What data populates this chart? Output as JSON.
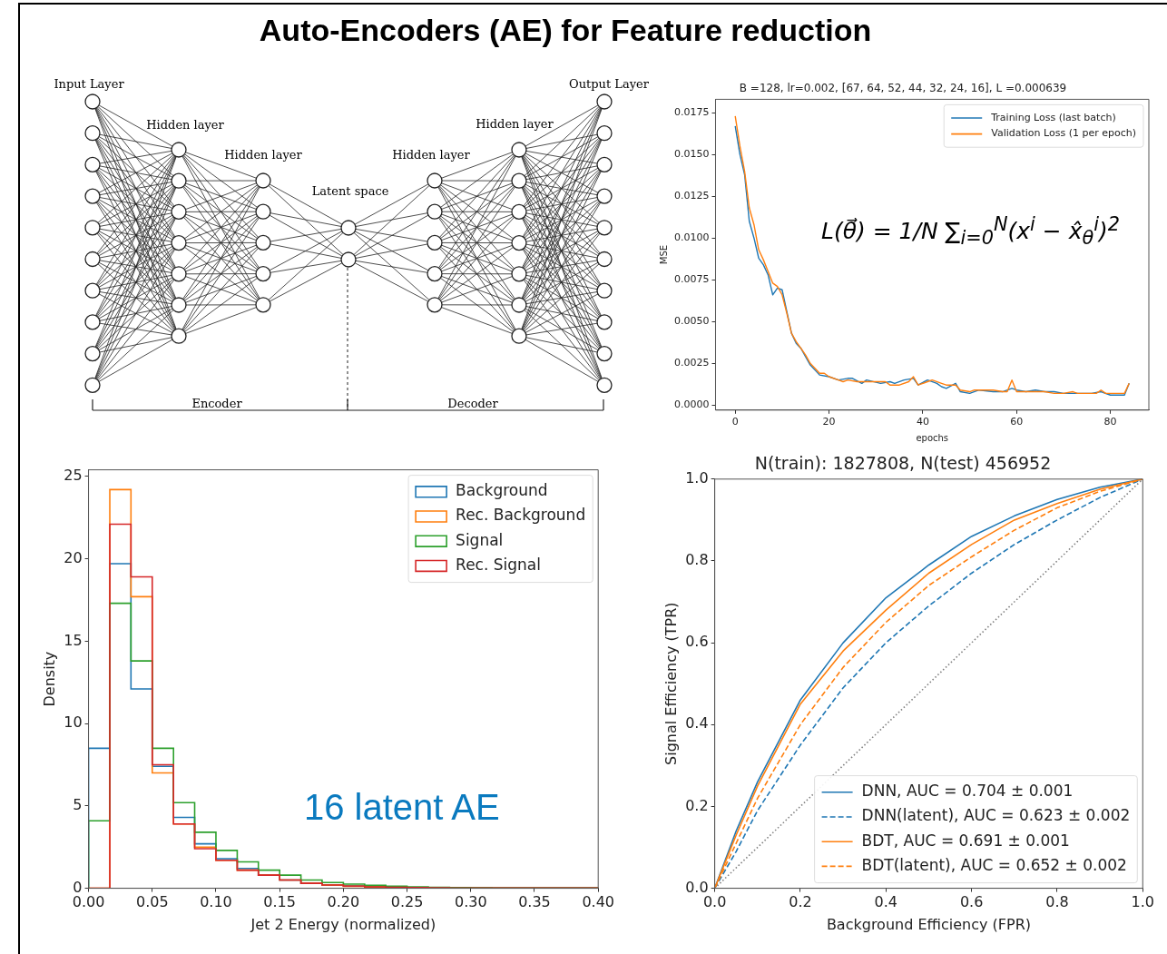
{
  "chart_data": [
    {
      "type": "other",
      "title": "Auto-Encoders (AE) for Feature reduction",
      "annotations": [
        "Input Layer",
        "Hidden layer",
        "Hidden layer",
        "Latent space",
        "Hidden layer",
        "Hidden layer",
        "Output Layer",
        "Encoder",
        "Decoder"
      ]
    },
    {
      "type": "line",
      "title": "B =128, lr=0.002, [67, 64, 52, 44, 32, 24, 16], L =0.000639",
      "xlabel": "epochs",
      "ylabel": "MSE",
      "xlim": [
        -4.2,
        88.2
      ],
      "xticks": [
        0,
        20,
        40,
        60,
        80
      ],
      "ylim": [
        -0.0003,
        0.0183
      ],
      "yticks": [
        {
          "value": 0,
          "label": "0.0000"
        },
        {
          "value": 0.0025,
          "label": "0.0025"
        },
        {
          "value": 0.005,
          "label": "0.0050"
        },
        {
          "value": 0.0075,
          "label": "0.0075"
        },
        {
          "value": 0.01,
          "label": "0.0100"
        },
        {
          "value": 0.0125,
          "label": "0.0125"
        },
        {
          "value": 0.015,
          "label": "0.0150"
        },
        {
          "value": 0.0175,
          "label": "0.0175"
        }
      ],
      "legend": "top right",
      "annotations": [
        "L(θ⃗) = 1/N ∑$_{i=0}$$^{N}$(x$^{i}$ − x̂$_{θ}$$^{i}$)$^{2}$"
      ],
      "series": [
        {
          "name": "Training Loss (last batch)",
          "color": "#1f77b4",
          "x": [
            0,
            1,
            2,
            3,
            4,
            5,
            6,
            7,
            8,
            9,
            10,
            11,
            12,
            13,
            14,
            15,
            16,
            17,
            18,
            20,
            22,
            24,
            25,
            27,
            28,
            31,
            33,
            34,
            36,
            38,
            39,
            41,
            43,
            44,
            45,
            47,
            48,
            50,
            52,
            55,
            57,
            59,
            60,
            62,
            64,
            66,
            68,
            70,
            72,
            74,
            76,
            78,
            80,
            82,
            83,
            84
          ],
          "values": [
            0.0167,
            0.015,
            0.0138,
            0.011,
            0.01,
            0.0088,
            0.0084,
            0.0078,
            0.0066,
            0.007,
            0.0069,
            0.0056,
            0.0043,
            0.0037,
            0.0034,
            0.0029,
            0.0024,
            0.0021,
            0.0018,
            0.0017,
            0.0015,
            0.0016,
            0.0016,
            0.0013,
            0.0015,
            0.0013,
            0.0014,
            0.0013,
            0.0015,
            0.0016,
            0.0012,
            0.0015,
            0.0013,
            0.0011,
            0.001,
            0.0013,
            0.0008,
            0.0007,
            0.0009,
            0.0008,
            0.0008,
            0.001,
            0.0009,
            0.0008,
            0.0009,
            0.0008,
            0.0008,
            0.0007,
            0.0007,
            0.0007,
            0.0007,
            0.0008,
            0.0006,
            0.0006,
            0.0006,
            0.0013
          ]
        },
        {
          "name": "Validation Loss (1 per epoch)",
          "color": "#ff7f0e",
          "x": [
            0,
            1,
            2,
            3,
            4,
            5,
            6,
            7,
            8,
            9,
            10,
            11,
            12,
            13,
            14,
            15,
            16,
            17,
            18,
            19,
            20,
            22,
            23,
            24,
            26,
            28,
            30,
            32,
            33,
            35,
            37,
            38,
            39,
            41,
            42,
            44,
            45,
            47,
            48,
            50,
            51,
            53,
            55,
            57,
            58,
            59,
            60,
            62,
            64,
            66,
            68,
            70,
            72,
            73,
            75,
            77,
            78,
            79,
            81,
            83,
            84
          ],
          "values": [
            0.0173,
            0.0155,
            0.014,
            0.0118,
            0.0108,
            0.0093,
            0.0087,
            0.008,
            0.0073,
            0.0071,
            0.0066,
            0.0055,
            0.0043,
            0.0038,
            0.0034,
            0.003,
            0.0025,
            0.0022,
            0.0019,
            0.0019,
            0.0017,
            0.0015,
            0.0014,
            0.0015,
            0.0014,
            0.0014,
            0.0014,
            0.0014,
            0.0012,
            0.0012,
            0.0014,
            0.0017,
            0.0012,
            0.0014,
            0.0015,
            0.0013,
            0.0012,
            0.0012,
            0.0009,
            0.0008,
            0.0009,
            0.0009,
            0.0009,
            0.0008,
            0.0008,
            0.0015,
            0.0008,
            0.0008,
            0.0008,
            0.0008,
            0.0007,
            0.0007,
            0.0008,
            0.0007,
            0.0007,
            0.0007,
            0.0009,
            0.0007,
            0.0007,
            0.0007,
            0.0013
          ]
        }
      ]
    },
    {
      "type": "histogram",
      "xlabel": "Jet 2 Energy (normalized)",
      "ylabel": "Density",
      "xlim": [
        0,
        0.4
      ],
      "xticks": [
        {
          "value": 0,
          "label": "0.00"
        },
        {
          "value": 0.05,
          "label": "0.05"
        },
        {
          "value": 0.1,
          "label": "0.10"
        },
        {
          "value": 0.15,
          "label": "0.15"
        },
        {
          "value": 0.2,
          "label": "0.20"
        },
        {
          "value": 0.25,
          "label": "0.25"
        },
        {
          "value": 0.3,
          "label": "0.30"
        },
        {
          "value": 0.35,
          "label": "0.35"
        },
        {
          "value": 0.4,
          "label": "0.40"
        }
      ],
      "ylim": [
        0,
        25.4
      ],
      "yticks": [
        0,
        5,
        10,
        15,
        20,
        25
      ],
      "legend": "top right",
      "annotations": [
        "16 latent AE"
      ],
      "bins": [
        0,
        0.0167,
        0.0333,
        0.05,
        0.0667,
        0.0833,
        0.1,
        0.1167,
        0.1333,
        0.15,
        0.1667,
        0.1833,
        0.2,
        0.2167,
        0.2333,
        0.25,
        0.2667,
        0.2833,
        0.3,
        0.3167,
        0.3333,
        0.35,
        0.3667,
        0.3833,
        0.4
      ],
      "series": [
        {
          "name": "Background",
          "color": "#1f77b4",
          "values": [
            8.5,
            19.7,
            12.1,
            7.4,
            4.3,
            2.7,
            1.8,
            1.2,
            0.8,
            0.5,
            0.3,
            0.2,
            0.15,
            0.1,
            0.06,
            0.04,
            0.03,
            0.02,
            0.02,
            0.01,
            0.01,
            0.01,
            0.01,
            0.01
          ]
        },
        {
          "name": "Rec. Background",
          "color": "#ff7f0e",
          "values": [
            0,
            24.2,
            17.7,
            7,
            3.9,
            2.5,
            1.7,
            1.1,
            0.8,
            0.5,
            0.3,
            0.2,
            0.12,
            0.08,
            0.05,
            0.04,
            0.03,
            0.02,
            0.02,
            0.01,
            0.01,
            0.01,
            0.01,
            0.01
          ]
        },
        {
          "name": "Signal",
          "color": "#2ca02c",
          "values": [
            4.1,
            17.3,
            13.8,
            8.5,
            5.2,
            3.4,
            2.3,
            1.6,
            1.1,
            0.8,
            0.5,
            0.35,
            0.25,
            0.18,
            0.12,
            0.08,
            0.06,
            0.04,
            0.03,
            0.02,
            0.02,
            0.01,
            0.01,
            0.01
          ]
        },
        {
          "name": "Rec. Signal",
          "color": "#d62728",
          "values": [
            0,
            22.1,
            18.9,
            7.5,
            3.9,
            2.4,
            1.7,
            1.1,
            0.8,
            0.5,
            0.3,
            0.2,
            0.13,
            0.09,
            0.06,
            0.04,
            0.03,
            0.02,
            0.02,
            0.01,
            0.01,
            0.01,
            0.01,
            0.01
          ]
        }
      ]
    },
    {
      "type": "line",
      "title": "N(train): 1827808, N(test) 456952",
      "xlabel": "Background Efficiency (FPR)",
      "ylabel": "Signal Efficiency (TPR)",
      "xlim": [
        0,
        1
      ],
      "ylim": [
        0,
        1
      ],
      "xticks": [
        {
          "value": 0,
          "label": "0.0"
        },
        {
          "value": 0.2,
          "label": "0.2"
        },
        {
          "value": 0.4,
          "label": "0.4"
        },
        {
          "value": 0.6,
          "label": "0.6"
        },
        {
          "value": 0.8,
          "label": "0.8"
        },
        {
          "value": 1,
          "label": "1.0"
        }
      ],
      "yticks": [
        {
          "value": 0,
          "label": "0.0"
        },
        {
          "value": 0.2,
          "label": "0.2"
        },
        {
          "value": 0.4,
          "label": "0.4"
        },
        {
          "value": 0.6,
          "label": "0.6"
        },
        {
          "value": 0.8,
          "label": "0.8"
        },
        {
          "value": 1,
          "label": "1.0"
        }
      ],
      "legend": "bottom right",
      "x": [
        0,
        0.05,
        0.1,
        0.2,
        0.3,
        0.4,
        0.5,
        0.6,
        0.7,
        0.8,
        0.9,
        1
      ],
      "series": [
        {
          "name": "DNN, AUC = 0.704 ± 0.001",
          "color": "#1f77b4",
          "line_style": "solid",
          "values": [
            0,
            0.14,
            0.26,
            0.46,
            0.6,
            0.71,
            0.79,
            0.86,
            0.91,
            0.95,
            0.98,
            1
          ]
        },
        {
          "name": "DNN(latent), AUC = 0.623 ± 0.002",
          "color": "#1f77b4",
          "line_style": "dashed",
          "values": [
            0,
            0.09,
            0.19,
            0.35,
            0.49,
            0.6,
            0.69,
            0.77,
            0.84,
            0.9,
            0.955,
            1
          ]
        },
        {
          "name": "BDT, AUC = 0.691 ± 0.001",
          "color": "#ff7f0e",
          "line_style": "solid",
          "values": [
            0,
            0.13,
            0.25,
            0.45,
            0.58,
            0.68,
            0.77,
            0.84,
            0.9,
            0.94,
            0.975,
            1
          ]
        },
        {
          "name": "BDT(latent), AUC = 0.652 ± 0.002",
          "color": "#ff7f0e",
          "line_style": "dashed",
          "values": [
            0,
            0.11,
            0.22,
            0.4,
            0.54,
            0.65,
            0.74,
            0.81,
            0.875,
            0.93,
            0.97,
            1
          ]
        },
        {
          "color": "#808080",
          "line_style": "dotted",
          "x": [
            0,
            1
          ],
          "values": [
            0,
            1
          ]
        }
      ]
    }
  ]
}
